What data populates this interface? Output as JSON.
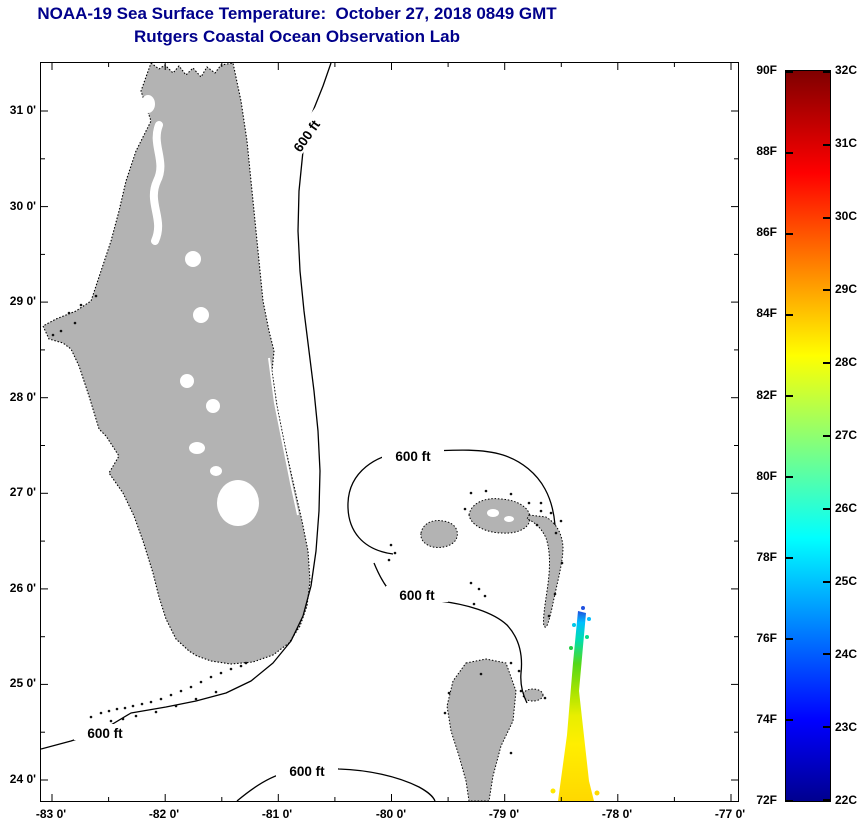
{
  "title": {
    "line1": "NOAA-19 Sea Surface Temperature:  October 27, 2018 0849 GMT",
    "line2": "Rutgers Coastal Ocean Observation Lab"
  },
  "map": {
    "x_axis_labels": [
      "-83 0'",
      "-82 0'",
      "-81 0'",
      "-80 0'",
      "-79 0'",
      "-78 0'",
      "-77 0'"
    ],
    "y_axis_labels": [
      "31 0'",
      "30 0'",
      "29 0'",
      "28 0'",
      "27 0'",
      "26 0'",
      "25 0'",
      "24 0'"
    ],
    "contour_labels": [
      "600 ft",
      "600 ft",
      "600 ft",
      "600 ft",
      "600 ft"
    ],
    "land_color": "#b3b3b3",
    "ocean_color": "#ffffff"
  },
  "colorbar": {
    "fahrenheit_labels": [
      "90F",
      "88F",
      "86F",
      "84F",
      "82F",
      "80F",
      "78F",
      "76F",
      "74F",
      "72F"
    ],
    "celsius_labels": [
      "32C",
      "31C",
      "30C",
      "29C",
      "28C",
      "27C",
      "26C",
      "25C",
      "24C",
      "23C",
      "22C"
    ],
    "range_f": [
      72,
      90
    ],
    "range_c": [
      22,
      32
    ]
  },
  "colors": {
    "title_text": "#00008b",
    "jet_scale": [
      "#00008f",
      "#0000ff",
      "#00ffff",
      "#ffff00",
      "#ff0000",
      "#800000"
    ]
  }
}
